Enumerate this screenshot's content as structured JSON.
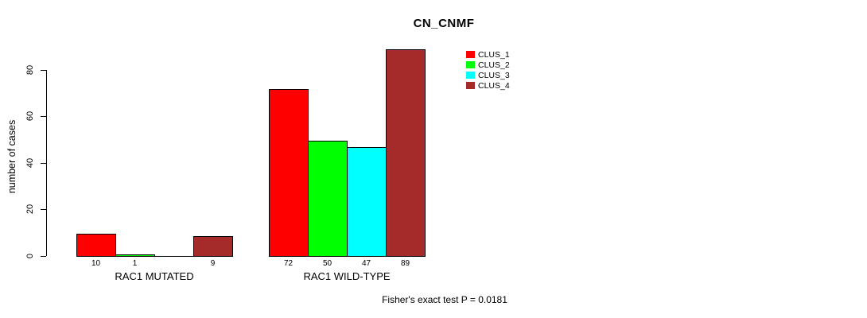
{
  "title": "CN_CNMF",
  "footer": "Fisher's exact test P = 0.0181",
  "chart_data": {
    "type": "bar",
    "title": "CN_CNMF",
    "xlabel": "",
    "ylabel": "number of cases",
    "ylim": [
      0,
      89
    ],
    "yticks": [
      0,
      20,
      40,
      60,
      80
    ],
    "grid": false,
    "legend_position": "top-right-inside",
    "categories": [
      "RAC1 MUTATED",
      "RAC1 WILD-TYPE"
    ],
    "series": [
      {
        "name": "CLUS_1",
        "color": "#ff0000",
        "values": [
          10,
          72
        ]
      },
      {
        "name": "CLUS_2",
        "color": "#00ff00",
        "values": [
          1,
          50
        ]
      },
      {
        "name": "CLUS_3",
        "color": "#00ffff",
        "values": [
          0,
          47
        ]
      },
      {
        "name": "CLUS_4",
        "color": "#a52a2a",
        "values": [
          9,
          89
        ]
      }
    ],
    "bar_value_labels": [
      [
        "10",
        "1",
        "",
        "9"
      ],
      [
        "72",
        "50",
        "47",
        "89"
      ]
    ],
    "annotation": "Fisher's exact test P = 0.0181"
  }
}
